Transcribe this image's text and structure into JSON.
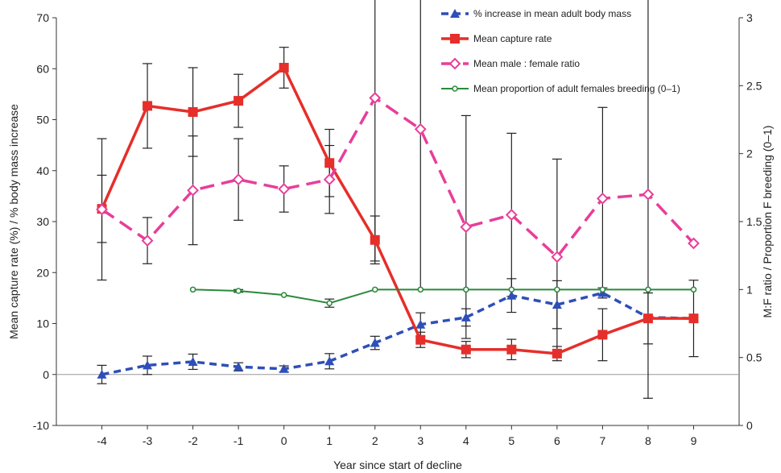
{
  "chart_data": {
    "type": "line",
    "xlabel": "Year since start of decline",
    "ylabel_left": "Mean capture rate (%) / % body mass increase",
    "ylabel_right": "M:F ratio / Proportion F breeding (0–1)",
    "x": [
      -4,
      -3,
      -2,
      -1,
      0,
      1,
      2,
      3,
      4,
      5,
      6,
      7,
      8,
      9
    ],
    "xlim": [
      -5,
      10
    ],
    "ylim_left": [
      -10,
      70
    ],
    "ylim_right": [
      0,
      3
    ],
    "yticks_left": [
      -10,
      0,
      10,
      20,
      30,
      40,
      50,
      60,
      70
    ],
    "yticks_right": [
      0,
      0.5,
      1,
      1.5,
      2,
      2.5,
      3
    ],
    "legend_position": "top-right",
    "series": [
      {
        "name": "% increase in mean adult body mass",
        "axis": "left",
        "color": "#2e4fb8",
        "dash": "dashed",
        "marker": "triangle",
        "x": [
          -4,
          -3,
          -2,
          -1,
          0,
          1,
          2,
          3,
          4,
          5,
          6,
          7,
          8,
          9
        ],
        "y": [
          0,
          1.8,
          2.5,
          1.5,
          1.1,
          2.6,
          6.2,
          9.8,
          11.2,
          15.5,
          13.7,
          16,
          11.2,
          11
        ],
        "err": [
          1.8,
          1.8,
          1.5,
          0.8,
          0.6,
          1.5,
          1.3,
          2.3,
          1.7,
          3.3,
          4.7,
          1.0,
          0,
          0
        ]
      },
      {
        "name": "Mean capture rate",
        "axis": "left",
        "color": "#e62e2a",
        "dash": "solid",
        "marker": "square",
        "x": [
          -4,
          -3,
          -2,
          -1,
          0,
          1,
          2,
          3,
          4,
          5,
          6,
          7,
          8,
          9
        ],
        "y": [
          32.5,
          52.7,
          51.5,
          53.7,
          60.2,
          41.5,
          26.4,
          6.8,
          4.9,
          4.9,
          4.1,
          7.8,
          11,
          11
        ],
        "err": [
          6.6,
          8.3,
          8.7,
          5.2,
          4.0,
          6.6,
          4.7,
          1.5,
          1.6,
          2.0,
          1.4,
          5.1,
          5.0,
          7.5
        ]
      },
      {
        "name": "Mean male : female ratio",
        "axis": "right",
        "color": "#e83e9a",
        "dash": "longdash",
        "marker": "diamond-open",
        "x": [
          -4,
          -3,
          -2,
          -1,
          0,
          1,
          2,
          3,
          4,
          5,
          6,
          7,
          8,
          9
        ],
        "y": [
          1.59,
          1.36,
          1.73,
          1.81,
          1.74,
          1.81,
          2.41,
          2.18,
          1.46,
          1.55,
          1.24,
          1.67,
          1.7,
          1.34
        ],
        "err": [
          0.52,
          0.17,
          0.4,
          0.3,
          0.17,
          0.25,
          1.2,
          1.18,
          0.82,
          0.6,
          0.72,
          0.67,
          1.5,
          0
        ]
      },
      {
        "name": "Mean proportion of adult females breeding (0–1)",
        "axis": "right",
        "color": "#2a8a3a",
        "dash": "solid",
        "marker": "circle-open",
        "x": [
          -2,
          -1,
          0,
          1,
          2,
          3,
          4,
          5,
          6,
          7,
          8,
          9
        ],
        "y": [
          1.0,
          0.99,
          0.96,
          0.9,
          1.0,
          1.0,
          1.0,
          1.0,
          1.0,
          1.0,
          1.0,
          1.0
        ],
        "err": [
          0,
          0.01,
          0,
          0.03,
          0,
          0,
          0,
          0,
          0,
          0,
          0,
          0
        ]
      }
    ]
  }
}
